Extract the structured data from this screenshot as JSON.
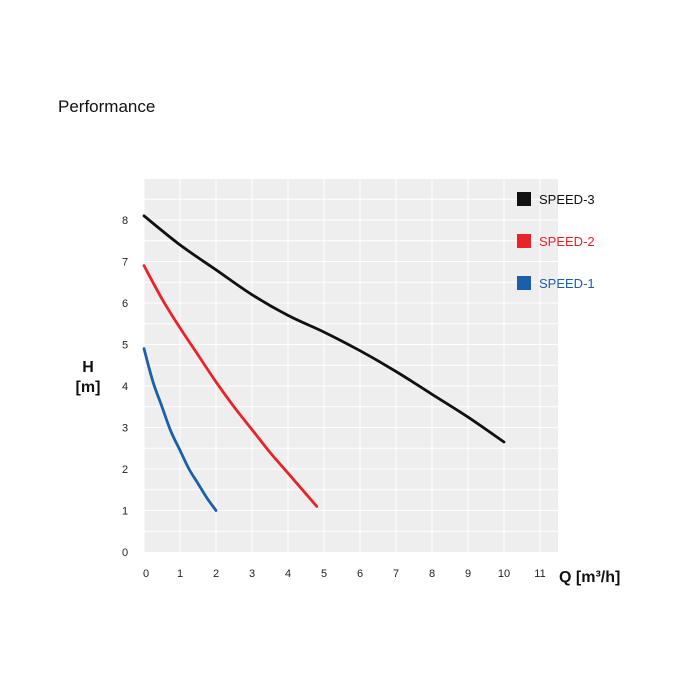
{
  "page": {
    "heading": "Performance"
  },
  "chart_data": {
    "type": "line",
    "xlabel": "Q [m³/h]",
    "ylabel_line1": "H",
    "ylabel_line2": "[m]",
    "xlim": [
      0,
      12
    ],
    "ylim": [
      0,
      9
    ],
    "xticks": [
      "0",
      "1",
      "2",
      "3",
      "4",
      "5",
      "6",
      "7",
      "8",
      "9",
      "10",
      "11"
    ],
    "yticks": [
      "0",
      "1",
      "2",
      "3",
      "4",
      "5",
      "6",
      "7",
      "8"
    ],
    "grid": true,
    "legend_position": "top-right",
    "background": "#eeeeee",
    "grid_color": "#ffffff",
    "series": [
      {
        "name": "SPEED-3",
        "color": "#111111",
        "x": [
          0,
          1,
          2,
          3,
          4,
          5,
          6,
          7,
          8,
          9,
          10
        ],
        "y": [
          8.1,
          7.4,
          6.8,
          6.2,
          5.7,
          5.3,
          4.85,
          4.35,
          3.8,
          3.25,
          2.65
        ]
      },
      {
        "name": "SPEED-2",
        "color": "#e8232a",
        "x": [
          0,
          0.5,
          1,
          1.5,
          2,
          2.5,
          3,
          3.5,
          4,
          4.5,
          4.8
        ],
        "y": [
          6.9,
          6.1,
          5.4,
          4.75,
          4.1,
          3.5,
          2.95,
          2.4,
          1.9,
          1.4,
          1.1
        ]
      },
      {
        "name": "SPEED-1",
        "color": "#1a5fa8",
        "x": [
          0,
          0.25,
          0.5,
          0.75,
          1,
          1.25,
          1.5,
          1.75,
          2
        ],
        "y": [
          4.9,
          4.1,
          3.5,
          2.9,
          2.45,
          2.0,
          1.65,
          1.3,
          1.0
        ]
      }
    ]
  }
}
